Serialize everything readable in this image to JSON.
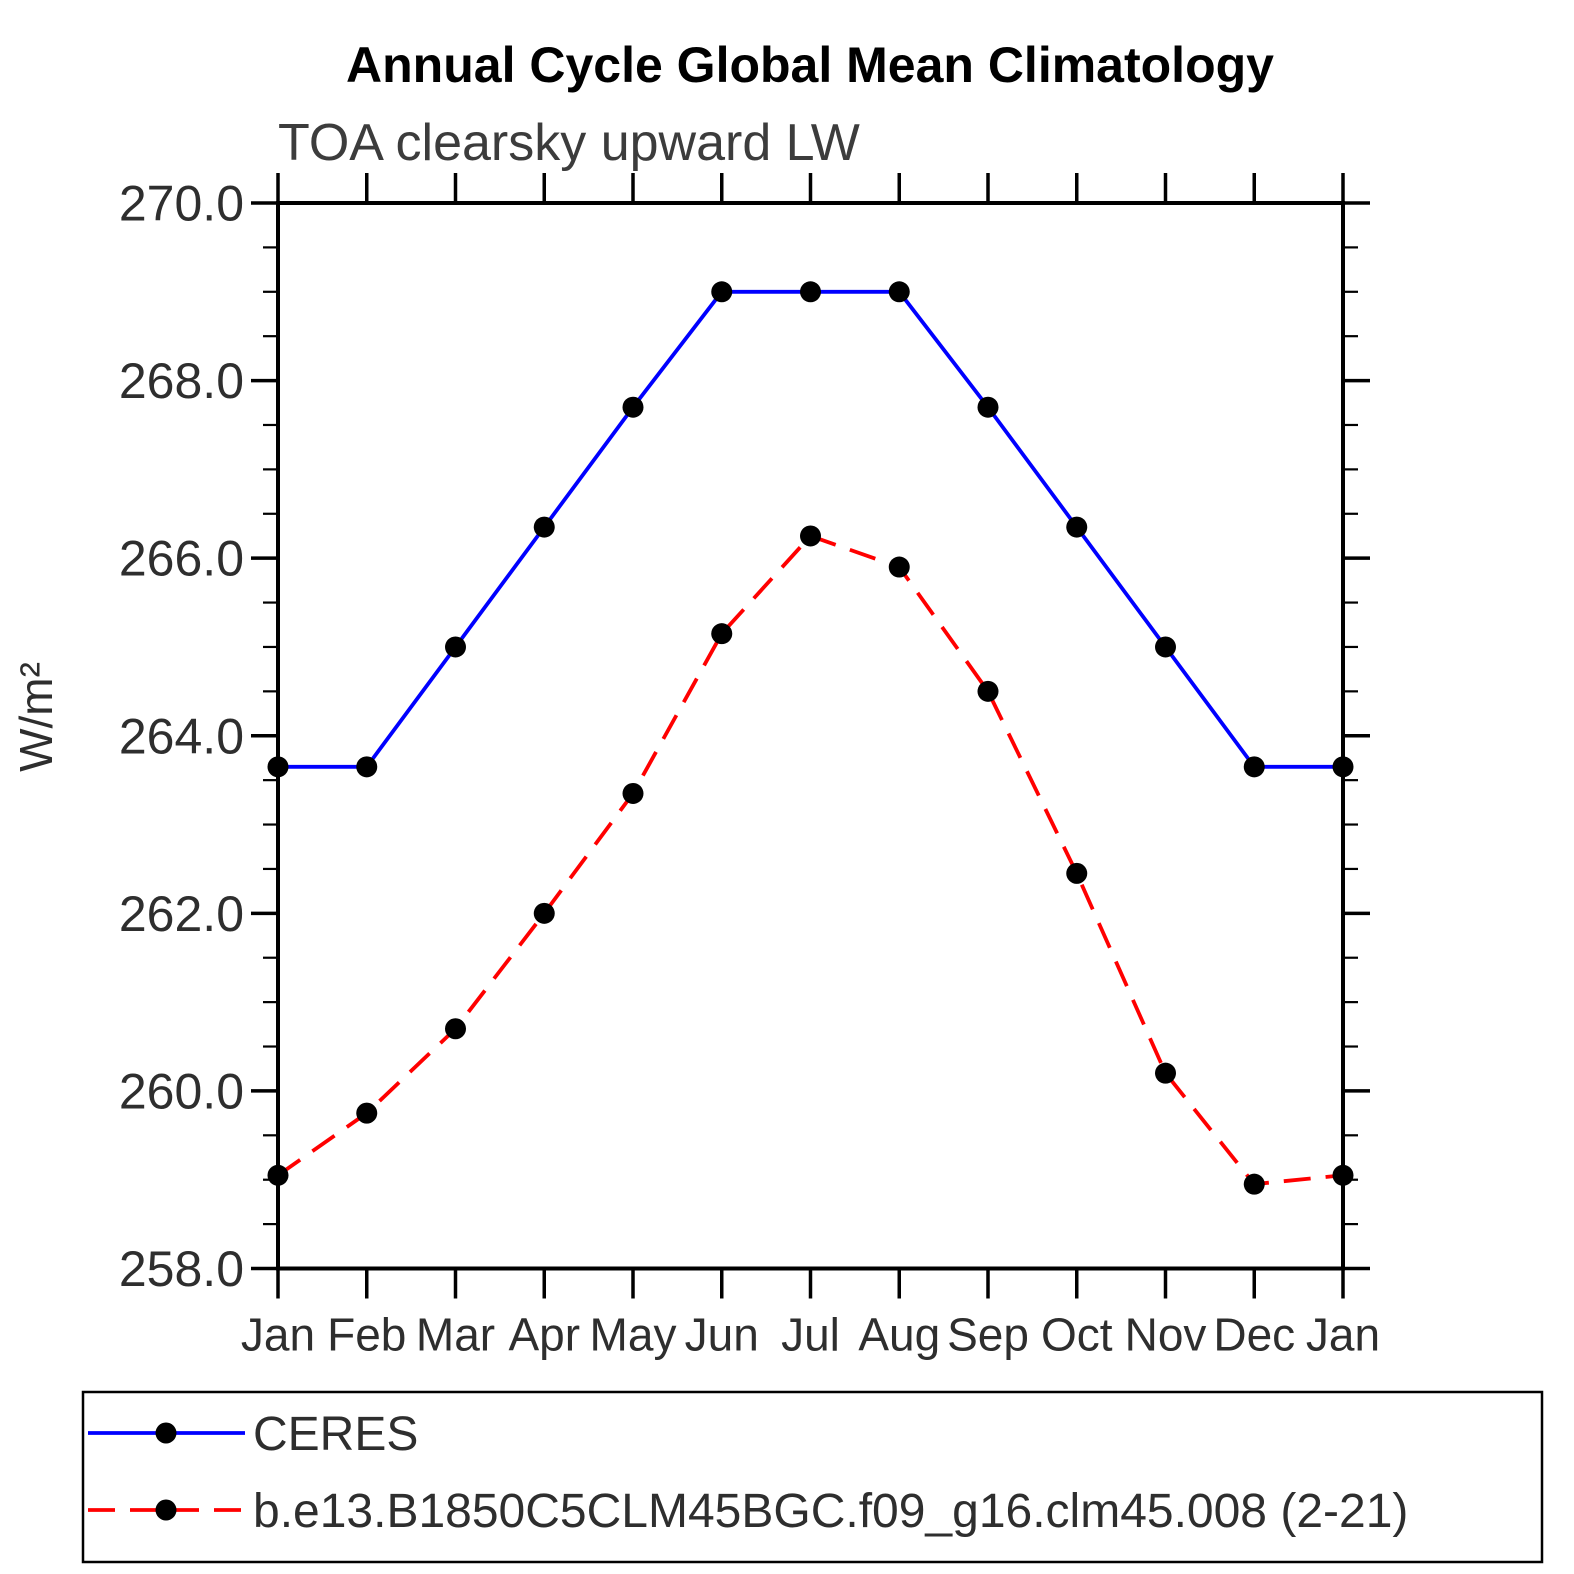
{
  "chart_data": {
    "type": "line",
    "title": "Annual Cycle Global Mean Climatology",
    "subtitle": "TOA clearsky upward LW",
    "ylabel": "W/m²",
    "xlabel": "",
    "categories": [
      "Jan",
      "Feb",
      "Mar",
      "Apr",
      "May",
      "Jun",
      "Jul",
      "Aug",
      "Sep",
      "Oct",
      "Nov",
      "Dec",
      "Jan"
    ],
    "ylim": [
      258.0,
      270.0
    ],
    "ytick_values": [
      258,
      260,
      262,
      264,
      266,
      268,
      270
    ],
    "ytick_labels": [
      "258.0",
      "260.0",
      "262.0",
      "264.0",
      "266.0",
      "268.0",
      "270.0"
    ],
    "ytick_minor_step": 0.5,
    "grid": false,
    "legend_position": "bottom",
    "marker_color": "#000000",
    "axis_color": "#000000",
    "series": [
      {
        "name": "CERES",
        "color": "#0000ff",
        "line_style": "solid",
        "values": [
          263.65,
          263.65,
          265.0,
          266.35,
          267.7,
          269.0,
          269.0,
          269.0,
          267.7,
          266.35,
          265.0,
          263.65,
          263.65
        ]
      },
      {
        "name": "b.e13.B1850C5CLM45BGC.f09_g16.clm45.008 (2-21)",
        "color": "#ff0000",
        "line_style": "dashed",
        "values": [
          259.05,
          259.75,
          260.7,
          262.0,
          263.35,
          265.15,
          266.25,
          265.9,
          264.5,
          262.45,
          260.2,
          258.95,
          259.05
        ]
      }
    ]
  }
}
